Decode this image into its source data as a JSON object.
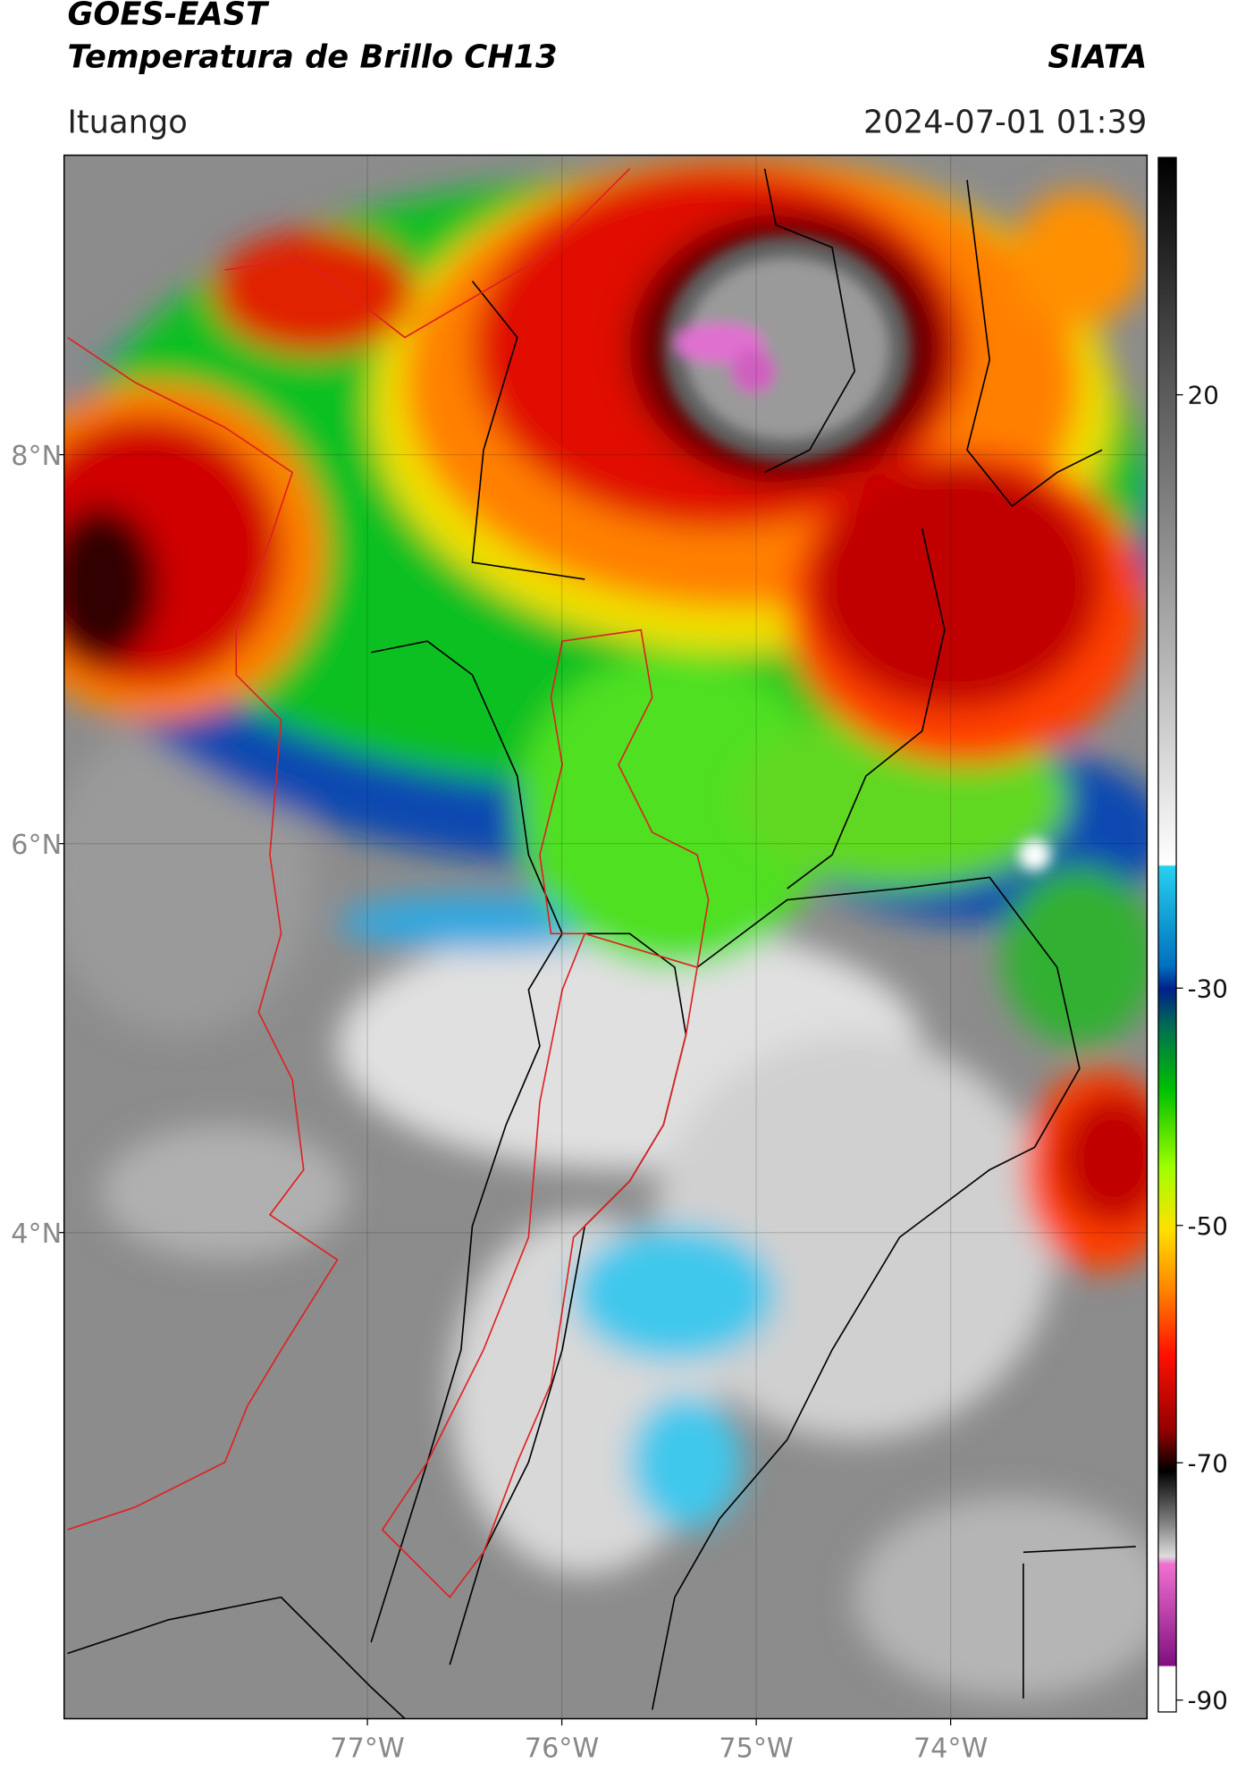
{
  "header": {
    "title_line1": "GOES-EAST",
    "title_line2": "Temperatura de Brillo CH13",
    "source": "SIATA",
    "region": "Ituango",
    "datetime": "2024-07-01 01:39"
  },
  "map": {
    "xlim": [
      -78.56,
      -72.99
    ],
    "ylim": [
      1.5,
      9.54
    ],
    "xticks": [
      {
        "value": -77,
        "label": "77°W"
      },
      {
        "value": -76,
        "label": "76°W"
      },
      {
        "value": -75,
        "label": "75°W"
      },
      {
        "value": -74,
        "label": "74°W"
      }
    ],
    "yticks": [
      {
        "value": 4,
        "label": "4°N"
      },
      {
        "value": 6,
        "label": "6°N"
      },
      {
        "value": 8,
        "label": "8°N"
      }
    ]
  },
  "colorbar": {
    "lim": [
      -91,
      40
    ],
    "ticks": [
      -90,
      -70,
      -50,
      -30,
      20
    ]
  }
}
